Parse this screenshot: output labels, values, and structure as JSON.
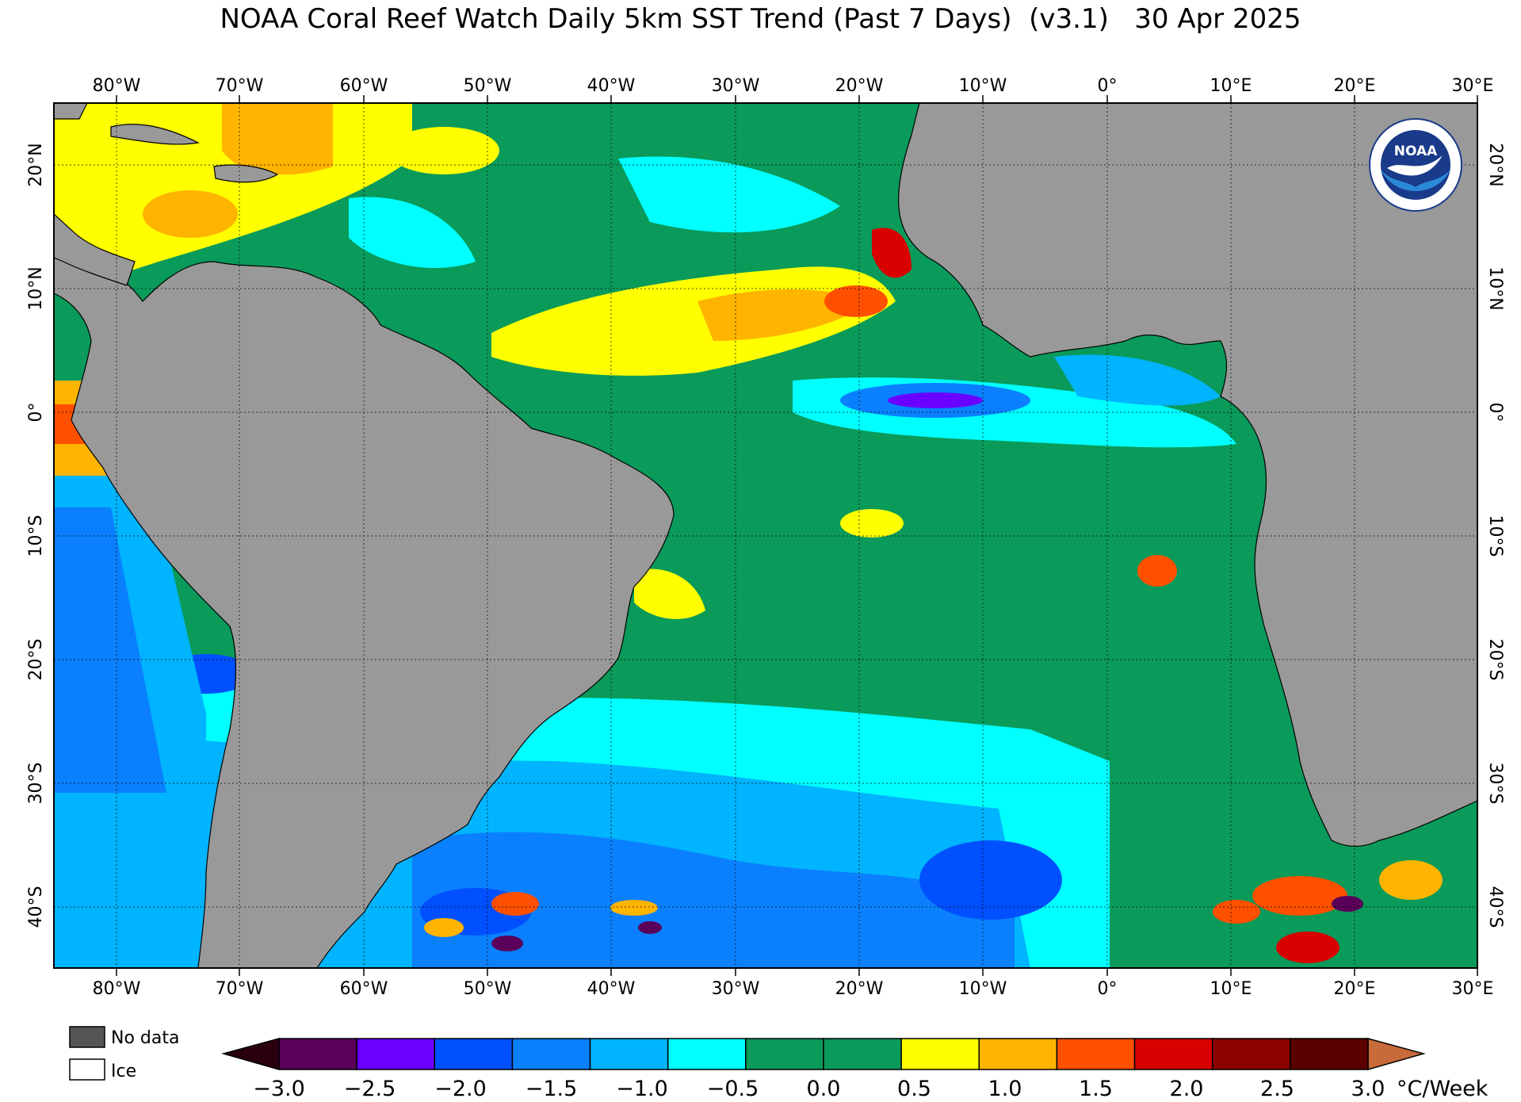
{
  "title": "NOAA Coral Reef Watch Daily 5km SST Trend (Past 7 Days)  (v3.1)   30 Apr 2025",
  "lon_labels": [
    "80°W",
    "70°W",
    "60°W",
    "50°W",
    "40°W",
    "30°W",
    "20°W",
    "10°W",
    "0°",
    "10°E",
    "20°E",
    "30°E"
  ],
  "lat_labels": [
    "20°N",
    "10°N",
    "0°",
    "10°S",
    "20°S",
    "30°S",
    "40°S"
  ],
  "logo_text": "NOAA",
  "key": {
    "no_data": "No data",
    "ice": "Ice",
    "no_data_color": "#555555",
    "ice_color": "#ffffff"
  },
  "colorbar": {
    "ticks": [
      "−3.0",
      "−2.5",
      "−2.0",
      "−1.5",
      "−1.0",
      "−0.5",
      "0.0",
      "0.5",
      "1.0",
      "1.5",
      "2.0",
      "2.5",
      "3.0"
    ],
    "unit": "°C/Week",
    "colors": [
      "#5a005a",
      "#6a00ff",
      "#0050ff",
      "#0a80ff",
      "#00b4ff",
      "#00ffff",
      "#0a9a5a",
      "#0a9a5a",
      "#ffff00",
      "#ffb400",
      "#ff5000",
      "#d80000",
      "#8c0000",
      "#5a0000"
    ],
    "under_color": "#2a0010",
    "over_color": "#c86a3a"
  },
  "colors": {
    "ocean_base": "#0a9a5a",
    "land": "#999999",
    "frame": "#000000"
  }
}
